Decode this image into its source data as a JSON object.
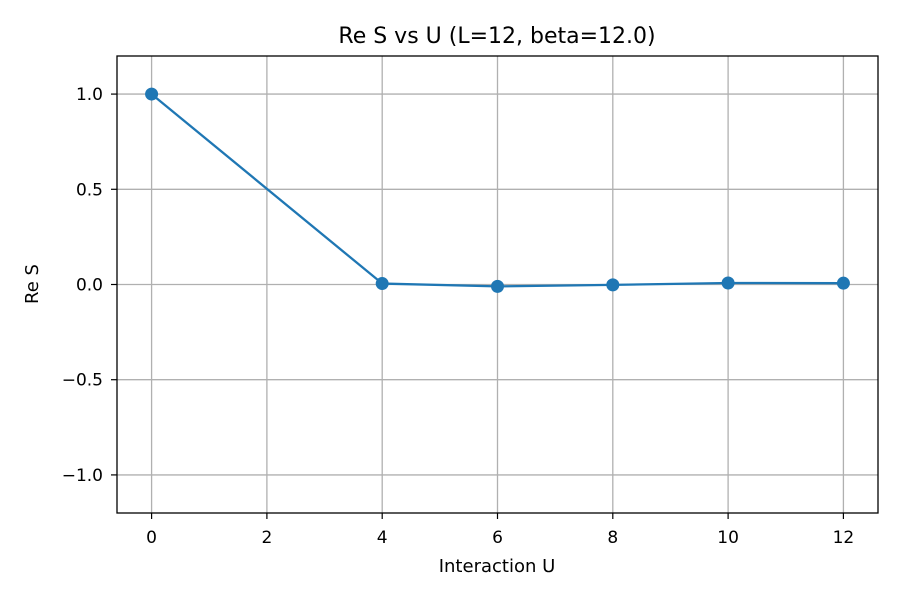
{
  "chart_data": {
    "type": "line",
    "title": "Re S vs U (L=12, beta=12.0)",
    "xlabel": "Interaction U",
    "ylabel": "Re S",
    "xlim": [
      -0.6,
      12.6
    ],
    "ylim": [
      -1.2,
      1.2
    ],
    "xticks": [
      0,
      2,
      4,
      6,
      8,
      10,
      12
    ],
    "yticks": [
      1.0,
      0.5,
      0.0,
      -0.5,
      -1.0
    ],
    "xtick_labels": [
      "0",
      "2",
      "4",
      "6",
      "8",
      "10",
      "12"
    ],
    "ytick_labels": [
      "1.0",
      "0.5",
      "0.0",
      "−0.5",
      "−1.0"
    ],
    "grid": true,
    "series": [
      {
        "x": [
          0,
          4,
          6,
          8,
          10,
          12
        ],
        "y": [
          1.0,
          0.005,
          -0.01,
          -0.002,
          0.008,
          0.007
        ],
        "color": "#1f77b4",
        "marker": "circle"
      }
    ]
  }
}
